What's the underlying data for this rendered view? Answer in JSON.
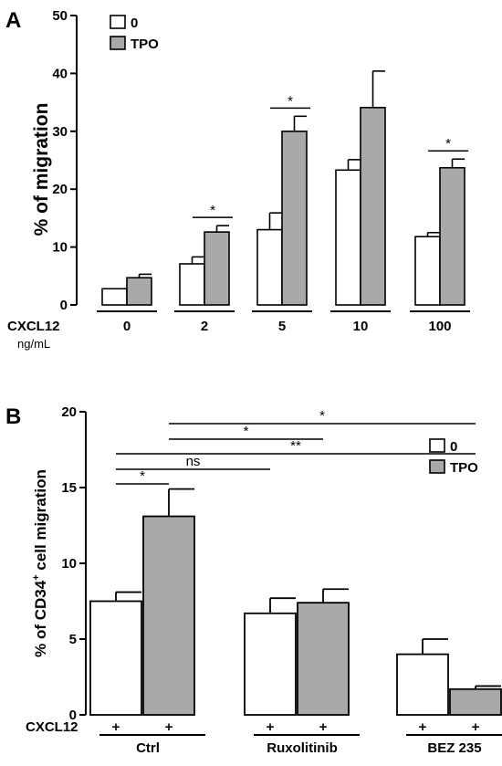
{
  "panels": {
    "a": {
      "letter": "A"
    },
    "b": {
      "letter": "B"
    }
  },
  "chart_data": [
    {
      "type": "bar",
      "panel": "A",
      "title": "",
      "xlabel": "CXCL12",
      "xunit": "ng/mL",
      "ylabel": "% of migration",
      "ylim": [
        0,
        50
      ],
      "yticks": [
        "0",
        "10",
        "20",
        "30",
        "40",
        "50"
      ],
      "categories": [
        "0",
        "2",
        "5",
        "10",
        "100"
      ],
      "series": [
        {
          "name": "0",
          "color": "#ffffff",
          "values": [
            2.8,
            7.1,
            13.0,
            23.3,
            11.8
          ],
          "errors": [
            0.0,
            1.2,
            2.9,
            1.8,
            0.7
          ]
        },
        {
          "name": "TPO",
          "color": "#a9a9a9",
          "values": [
            4.7,
            12.6,
            30.0,
            34.1,
            23.7
          ],
          "errors": [
            0.6,
            1.1,
            2.6,
            6.3,
            1.5
          ]
        }
      ],
      "significance": [
        {
          "category": "2",
          "label": "*"
        },
        {
          "category": "5",
          "label": "*"
        },
        {
          "category": "100",
          "label": "*"
        }
      ],
      "legend": "top-left"
    },
    {
      "type": "bar",
      "panel": "B",
      "title": "",
      "xlabel": "CXCL12",
      "ylabel": "% of CD34",
      "ylabel_sup": "+",
      "ylabel_tail": " cell migration",
      "ylim": [
        0,
        20
      ],
      "yticks": [
        "0",
        "5",
        "10",
        "15",
        "20"
      ],
      "categories": [
        "Ctrl",
        "Ruxolitinib",
        "BEZ 235"
      ],
      "cxcl12_marks": "+",
      "series": [
        {
          "name": "0",
          "color": "#ffffff",
          "values": [
            7.5,
            6.7,
            4.0
          ],
          "errors": [
            0.6,
            1.0,
            1.0
          ]
        },
        {
          "name": "TPO",
          "color": "#a9a9a9",
          "values": [
            13.1,
            7.4,
            1.7
          ],
          "errors": [
            1.8,
            0.9,
            0.2
          ]
        }
      ],
      "comparisons": [
        {
          "from": "Ctrl-TPO",
          "to": "BEZ 235-TPO",
          "label": "*"
        },
        {
          "from": "Ctrl-TPO",
          "to": "Ruxolitinib-TPO",
          "label": "*"
        },
        {
          "from": "Ctrl-0",
          "to": "BEZ 235-TPO",
          "label": "**"
        },
        {
          "from": "Ctrl-0",
          "to": "Ruxolitinib-0",
          "label": "ns"
        },
        {
          "from": "Ctrl-0",
          "to": "Ctrl-TPO",
          "label": "*"
        }
      ],
      "legend": "top-right"
    }
  ]
}
